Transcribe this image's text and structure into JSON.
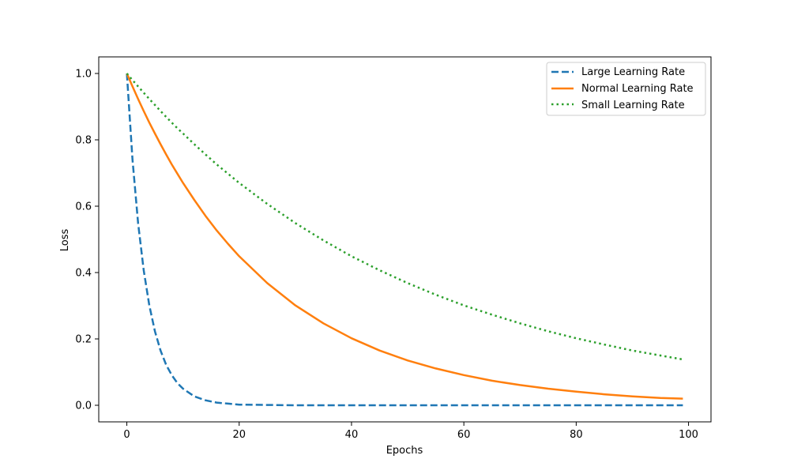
{
  "chart_data": {
    "type": "line",
    "title": "",
    "xlabel": "Epochs",
    "ylabel": "Loss",
    "xlim": [
      -5,
      104
    ],
    "ylim": [
      -0.05,
      1.05
    ],
    "xticks": [
      0,
      20,
      40,
      60,
      80,
      100
    ],
    "xtick_labels": [
      "0",
      "20",
      "40",
      "60",
      "80",
      "100"
    ],
    "yticks": [
      0.0,
      0.2,
      0.4,
      0.6,
      0.8,
      1.0
    ],
    "ytick_labels": [
      "0.0",
      "0.2",
      "0.4",
      "0.6",
      "0.8",
      "1.0"
    ],
    "grid": false,
    "legend_position": "top-right",
    "x": [
      0,
      1,
      2,
      3,
      4,
      5,
      6,
      7,
      8,
      9,
      10,
      12,
      14,
      16,
      18,
      20,
      25,
      30,
      35,
      40,
      45,
      50,
      55,
      60,
      65,
      70,
      75,
      80,
      85,
      90,
      95,
      99
    ],
    "series": [
      {
        "name": "Large Learning Rate",
        "color": "#1f77b4",
        "style": "dashed",
        "values": [
          1.0,
          0.741,
          0.549,
          0.407,
          0.301,
          0.223,
          0.165,
          0.122,
          0.091,
          0.067,
          0.05,
          0.027,
          0.015,
          0.008,
          0.005,
          0.002,
          0.001,
          0.0,
          0.0,
          0.0,
          0.0,
          0.0,
          0.0,
          0.0,
          0.0,
          0.0,
          0.0,
          0.0,
          0.0,
          0.0,
          0.0,
          0.0
        ]
      },
      {
        "name": "Normal Learning Rate",
        "color": "#ff7f0e",
        "style": "solid",
        "values": [
          1.0,
          0.961,
          0.923,
          0.887,
          0.852,
          0.819,
          0.787,
          0.756,
          0.726,
          0.698,
          0.67,
          0.619,
          0.571,
          0.527,
          0.487,
          0.449,
          0.368,
          0.301,
          0.247,
          0.202,
          0.165,
          0.135,
          0.111,
          0.091,
          0.074,
          0.061,
          0.05,
          0.041,
          0.033,
          0.027,
          0.022,
          0.02
        ]
      },
      {
        "name": "Small Learning Rate",
        "color": "#2ca02c",
        "style": "dotted",
        "values": [
          1.0,
          0.98,
          0.961,
          0.942,
          0.923,
          0.905,
          0.887,
          0.869,
          0.852,
          0.835,
          0.819,
          0.787,
          0.756,
          0.726,
          0.698,
          0.67,
          0.607,
          0.549,
          0.497,
          0.449,
          0.407,
          0.368,
          0.333,
          0.301,
          0.273,
          0.247,
          0.223,
          0.202,
          0.183,
          0.165,
          0.15,
          0.138
        ]
      }
    ]
  }
}
